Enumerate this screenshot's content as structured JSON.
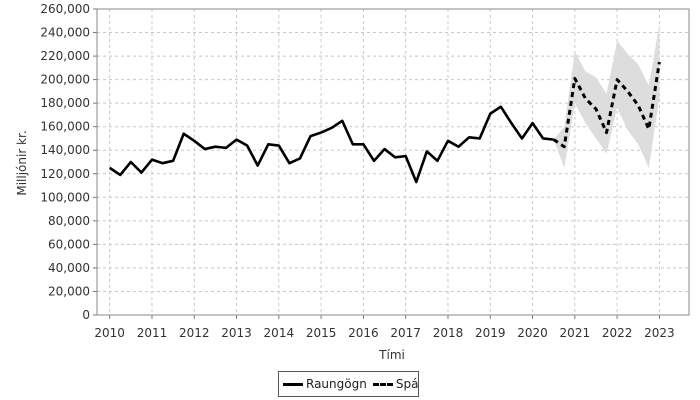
{
  "chart_data": {
    "type": "line",
    "ylabel": "Milljónir kr.",
    "xlabel": "Tími",
    "xlim": [
      2009.7,
      2023.7
    ],
    "ylim": [
      0,
      260000
    ],
    "yticks": [
      0,
      20000,
      40000,
      60000,
      80000,
      100000,
      120000,
      140000,
      160000,
      180000,
      200000,
      220000,
      240000,
      260000
    ],
    "ytick_labels": [
      "0",
      "20,000",
      "40,000",
      "60,000",
      "80,000",
      "100,000",
      "120,000",
      "140,000",
      "160,000",
      "180,000",
      "200,000",
      "220,000",
      "240,000",
      "260,000"
    ],
    "xticks": [
      2010,
      2011,
      2012,
      2013,
      2014,
      2015,
      2016,
      2017,
      2018,
      2019,
      2020,
      2021,
      2022,
      2023
    ],
    "xtick_labels": [
      "2010",
      "2011",
      "2012",
      "2013",
      "2014",
      "2015",
      "2016",
      "2017",
      "2018",
      "2019",
      "2020",
      "2021",
      "2022",
      "2023"
    ],
    "grid": true,
    "legend_position": "bottom-center",
    "colors": {
      "line": "#000000",
      "band": "#dddddd",
      "grid": "#c8c8c8"
    },
    "series": [
      {
        "name": "Raungögn",
        "style": "solid",
        "x": [
          2010.0,
          2010.25,
          2010.5,
          2010.75,
          2011.0,
          2011.25,
          2011.5,
          2011.75,
          2012.0,
          2012.25,
          2012.5,
          2012.75,
          2013.0,
          2013.25,
          2013.5,
          2013.75,
          2014.0,
          2014.25,
          2014.5,
          2014.75,
          2015.0,
          2015.25,
          2015.5,
          2015.75,
          2016.0,
          2016.25,
          2016.5,
          2016.75,
          2017.0,
          2017.25,
          2017.5,
          2017.75,
          2018.0,
          2018.25,
          2018.5,
          2018.75,
          2019.0,
          2019.25,
          2019.5,
          2019.75,
          2020.0,
          2020.25,
          2020.5
        ],
        "values": [
          125000,
          119000,
          130000,
          121000,
          132000,
          129000,
          131000,
          154000,
          148000,
          141000,
          143000,
          142000,
          149000,
          144000,
          127000,
          145000,
          144000,
          129000,
          133000,
          152000,
          155000,
          159000,
          165000,
          145000,
          145000,
          131000,
          141000,
          134000,
          135000,
          113000,
          139000,
          131000,
          148000,
          143000,
          151000,
          150000,
          171000,
          177000,
          163000,
          150000,
          163000,
          150000,
          149000
        ]
      },
      {
        "name": "Spá",
        "style": "dashed",
        "x": [
          2020.5,
          2020.75,
          2021.0,
          2021.25,
          2021.5,
          2021.75,
          2022.0,
          2022.25,
          2022.5,
          2022.75,
          2023.0
        ],
        "values": [
          149000,
          143000,
          201000,
          184000,
          175000,
          155000,
          200000,
          190000,
          178000,
          158000,
          215000
        ],
        "band_lower": [
          149000,
          125000,
          180000,
          163000,
          150000,
          137000,
          176000,
          157000,
          145000,
          125000,
          185000
        ],
        "band_upper": [
          149000,
          160000,
          224000,
          207000,
          202000,
          188000,
          233000,
          222000,
          213000,
          195000,
          247000
        ]
      }
    ]
  }
}
